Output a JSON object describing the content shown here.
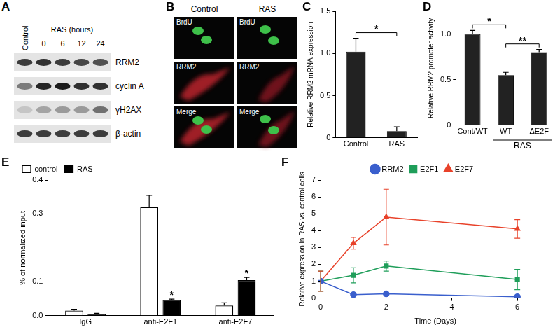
{
  "blot": {
    "panel_label": "A",
    "control_label": "Control",
    "group_label": "RAS (hours)",
    "lanes": [
      "0",
      "6",
      "12",
      "24"
    ],
    "rows": [
      {
        "name": "RRM2",
        "bands": [
          0.8,
          0.85,
          0.8,
          0.75,
          0.7
        ]
      },
      {
        "name": "cyclin A",
        "bands": [
          0.5,
          0.9,
          0.95,
          0.85,
          0.85
        ]
      },
      {
        "name": "γH2AX",
        "bands": [
          0.15,
          0.3,
          0.35,
          0.35,
          0.55
        ]
      },
      {
        "name": "β-actin",
        "bands": [
          0.8,
          0.8,
          0.8,
          0.8,
          0.8
        ]
      }
    ]
  },
  "microscopy": {
    "panel_label": "B",
    "columns": [
      "Control",
      "RAS"
    ],
    "rows": [
      "BrdU",
      "RRM2",
      "Merge"
    ]
  },
  "chart_data": [
    {
      "panel_label": "C",
      "type": "bar",
      "y_label": "Relative RRM2 mRNA expression",
      "categories": [
        "Control",
        "RAS"
      ],
      "values": [
        1.02,
        0.08
      ],
      "errors": [
        0.16,
        0.05
      ],
      "color": "#222222",
      "ylim": [
        0,
        1.5
      ],
      "yticks": [
        0,
        0.5,
        {
          "value": 1,
          "label": "1.0"
        },
        1.5
      ],
      "grid": false,
      "annotations": [
        {
          "text": "*",
          "from": "Control",
          "to": "RAS"
        }
      ]
    },
    {
      "panel_label": "D",
      "type": "bar",
      "y_label": "Relative RRM2 promoter activity",
      "categories": [
        "Cont/WT",
        "WT",
        "ΔE2F"
      ],
      "values": [
        1.0,
        0.55,
        0.8
      ],
      "errors": [
        0.04,
        0.03,
        0.03
      ],
      "color": "#222222",
      "ylim": [
        0,
        1.25
      ],
      "yticks": [
        0,
        0.5,
        {
          "value": 1,
          "label": "1.0"
        }
      ],
      "grid": false,
      "annotations": [
        {
          "text": "*",
          "from": "Cont/WT",
          "to": "WT"
        },
        {
          "text": "**",
          "from": "WT",
          "to": "ΔE2F"
        }
      ],
      "group_labels": [
        {
          "text": "RAS",
          "from": "WT",
          "to": "ΔE2F"
        }
      ]
    },
    {
      "panel_label": "E",
      "type": "bar",
      "y_label": "% of normalized input",
      "categories": [
        "IgG",
        "anti-E2F1",
        "anti-E2F7"
      ],
      "series": [
        {
          "name": "control",
          "color": "#ffffff",
          "values": [
            0.015,
            0.32,
            0.03
          ],
          "errors": [
            0.004,
            0.035,
            0.008
          ]
        },
        {
          "name": "RAS",
          "color": "#000000",
          "values": [
            0.005,
            0.047,
            0.105
          ],
          "errors": [
            0.002,
            0.002,
            0.008
          ]
        }
      ],
      "ylim": [
        0,
        0.4
      ],
      "yticks": [
        {
          "value": 0,
          "label": "0.0"
        },
        0.1,
        0.3,
        0.4
      ],
      "grid": false,
      "legend": "top-left",
      "annotations": [
        {
          "text": "*",
          "category": "anti-E2F1",
          "series": "RAS"
        },
        {
          "text": "*",
          "category": "anti-E2F7",
          "series": "RAS"
        }
      ]
    },
    {
      "panel_label": "F",
      "type": "line",
      "x_label": "Time (Days)",
      "y_label": "Relative expression in RAS vs. control cells",
      "x": [
        0,
        1,
        2,
        6
      ],
      "xlim": [
        0,
        7
      ],
      "xticks": [
        0,
        2,
        4,
        6
      ],
      "ylim": [
        0,
        7
      ],
      "yticks": [
        0,
        1,
        2,
        3,
        4,
        5,
        6,
        7
      ],
      "grid": false,
      "legend": "top",
      "series": [
        {
          "name": "RRM2",
          "color": "#3a5fcd",
          "marker": "circle",
          "values": [
            1,
            0.2,
            0.25,
            0.08
          ],
          "errors": [
            0.05,
            0.03,
            0.03,
            0.02
          ]
        },
        {
          "name": "E2F1",
          "color": "#1f9e5a",
          "marker": "square",
          "values": [
            1,
            1.35,
            1.9,
            1.1
          ],
          "errors": [
            0.6,
            0.45,
            0.3,
            0.6
          ]
        },
        {
          "name": "E2F7",
          "color": "#e8422a",
          "marker": "triangle",
          "values": [
            1,
            3.25,
            4.8,
            4.1
          ],
          "errors": [
            0.6,
            0.35,
            1.65,
            0.55
          ]
        }
      ]
    }
  ]
}
